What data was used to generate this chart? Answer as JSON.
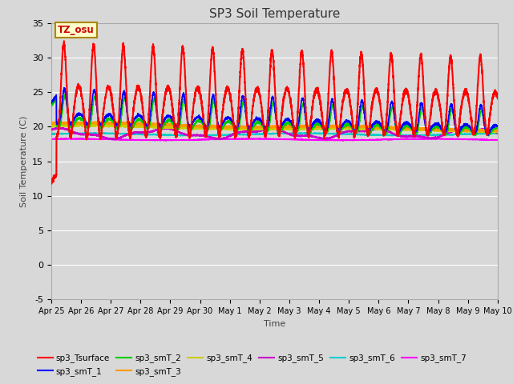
{
  "title": "SP3 Soil Temperature",
  "xlabel": "Time",
  "ylabel": "Soil Temperature (C)",
  "ylim": [
    -5,
    35
  ],
  "tz_label": "TZ_osu",
  "x_tick_labels": [
    "Apr 25",
    "Apr 26",
    "Apr 27",
    "Apr 28",
    "Apr 29",
    "Apr 30",
    "May 1",
    "May 2",
    "May 3",
    "May 4",
    "May 5",
    "May 6",
    "May 7",
    "May 8",
    "May 9",
    "May 10"
  ],
  "series_colors": {
    "sp3_Tsurface": "#ff0000",
    "sp3_smT_1": "#0000ff",
    "sp3_smT_2": "#00cc00",
    "sp3_smT_3": "#ff9900",
    "sp3_smT_4": "#cccc00",
    "sp3_smT_5": "#cc00cc",
    "sp3_smT_6": "#00cccc",
    "sp3_smT_7": "#ff00ff"
  },
  "bg_color": "#d8d8d8",
  "plot_bg_color": "#d8d8d8",
  "grid_color": "#ffffff"
}
